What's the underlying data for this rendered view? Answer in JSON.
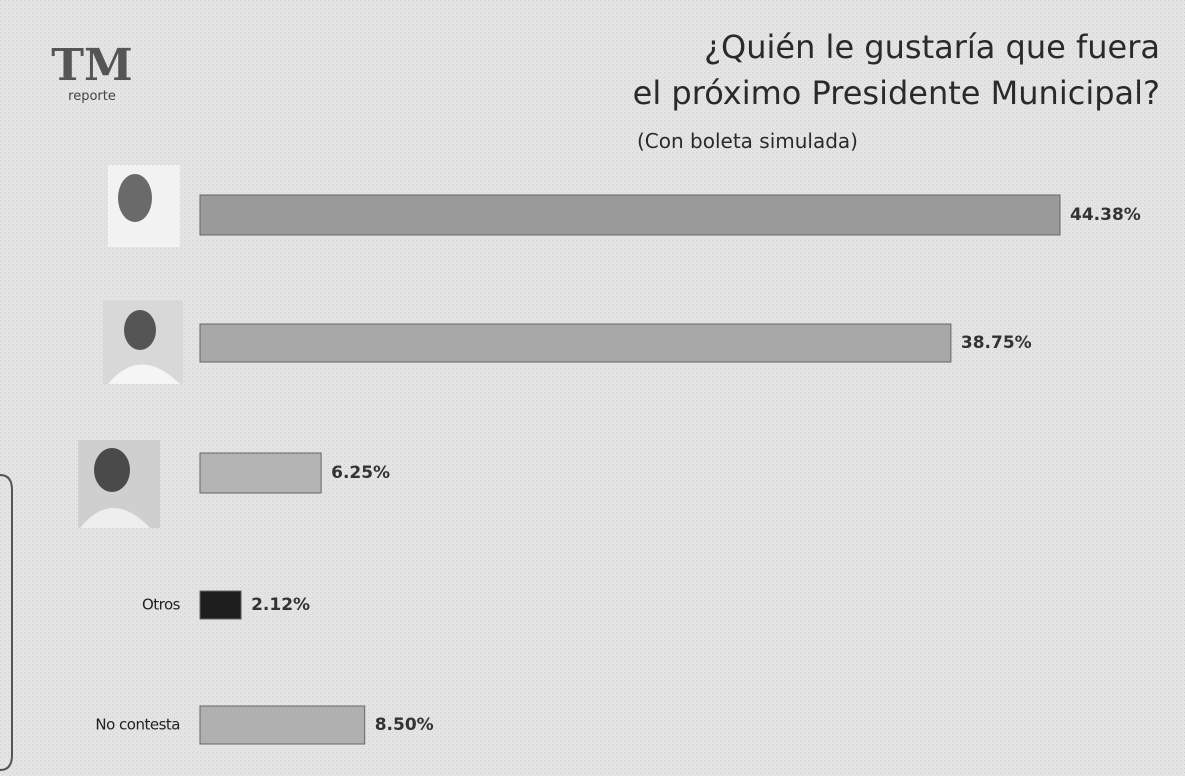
{
  "logo": {
    "title": "TM",
    "subtitle": "reporte"
  },
  "chart_data": {
    "type": "bar",
    "orientation": "horizontal",
    "title": "¿Quién le gustaría que fuera el próximo Presidente Municipal?",
    "subtitle": "(Con boleta simulada)",
    "categories": [
      null,
      null,
      null,
      "Otros",
      "No contesta"
    ],
    "values": [
      44.38,
      38.75,
      6.25,
      2.12,
      8.5
    ],
    "value_labels": [
      "44.38%",
      "38.75%",
      "6.25%",
      "2.12%",
      "8.50%"
    ],
    "colors": [
      "#9a9a9a",
      "#a8a8a8",
      "#b4b4b4",
      "#1e1e1e",
      "#b0b0b0"
    ]
  }
}
